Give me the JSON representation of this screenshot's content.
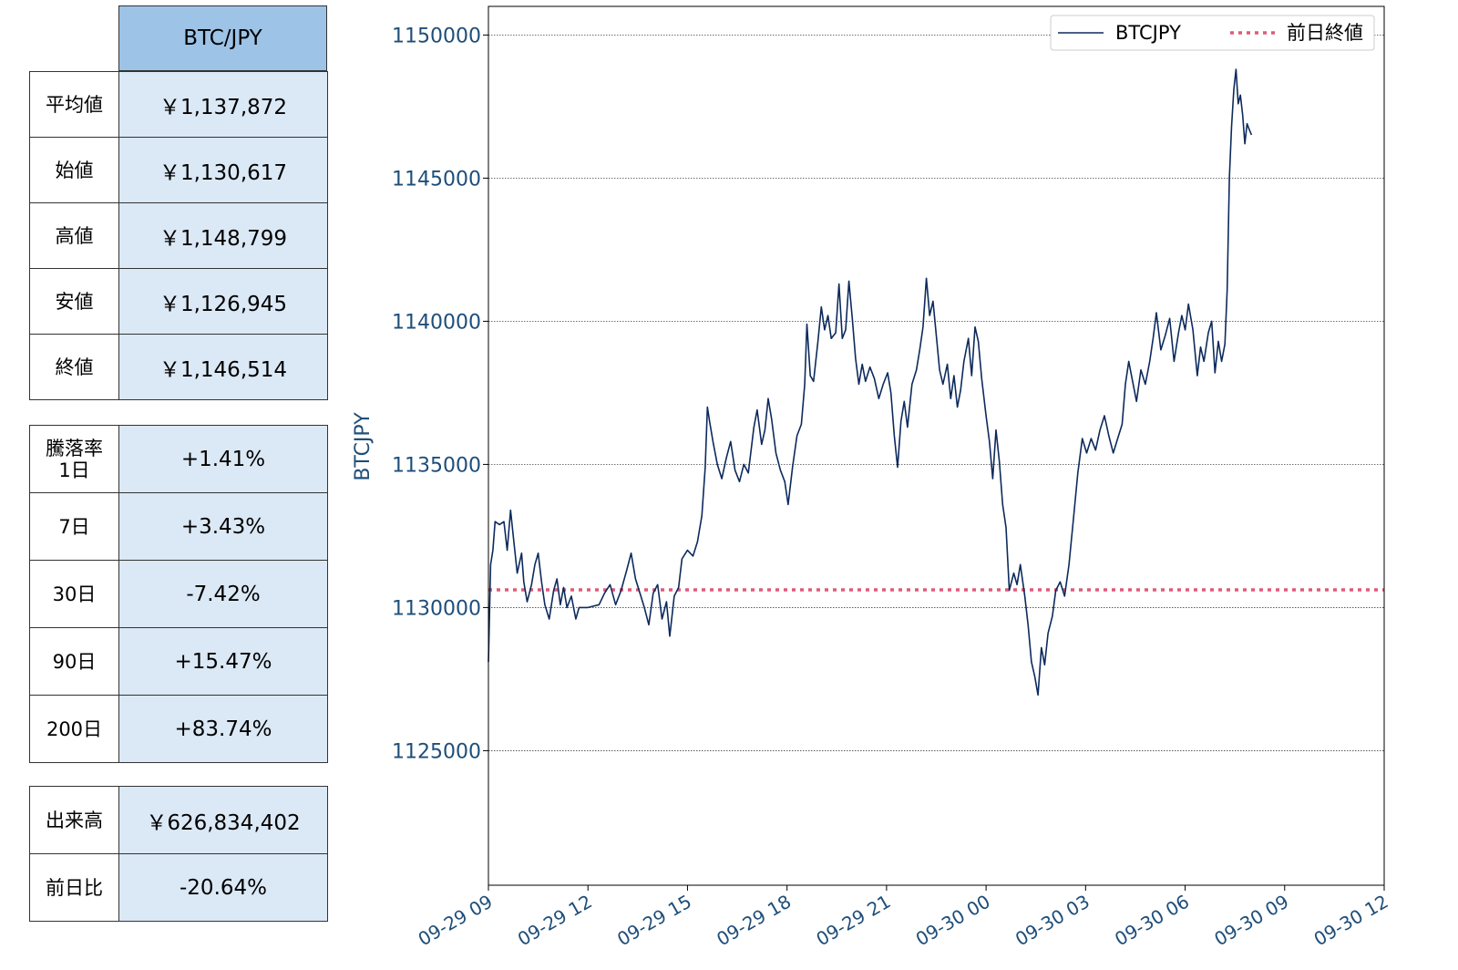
{
  "summary_table": {
    "header": "BTC/JPY",
    "rows": [
      {
        "label": "平均値",
        "value": "￥1,137,872"
      },
      {
        "label": "始値",
        "value": "￥1,130,617"
      },
      {
        "label": "高値",
        "value": "￥1,148,799"
      },
      {
        "label": "安値",
        "value": "￥1,126,945"
      },
      {
        "label": "終値",
        "value": "￥1,146,514"
      }
    ]
  },
  "change_table": {
    "rows": [
      {
        "label": "騰落率\n1日",
        "value": "+1.41%"
      },
      {
        "label": "7日",
        "value": "+3.43%"
      },
      {
        "label": "30日",
        "value": "-7.42%"
      },
      {
        "label": "90日",
        "value": "+15.47%"
      },
      {
        "label": "200日",
        "value": "+83.74%"
      }
    ]
  },
  "volume_table": {
    "rows": [
      {
        "label": "出来高",
        "value": "￥626,834,402"
      },
      {
        "label": "前日比",
        "value": "-20.64%"
      }
    ]
  },
  "colors": {
    "line": "#0d2a5c",
    "reference": "#e05a7a",
    "tick_text": "#1f4e79",
    "header_bg": "#9dc3e6",
    "value_bg": "#dbe8f5"
  },
  "chart_data": {
    "type": "line",
    "xlabel": "",
    "ylabel": "BTCJPY",
    "xlim": [
      "09-29 09:00",
      "09-30 12:00"
    ],
    "ylim": [
      1120300,
      1151000
    ],
    "x_ticks": [
      "09-29 09",
      "09-29 12",
      "09-29 15",
      "09-29 18",
      "09-29 21",
      "09-30 00",
      "09-30 03",
      "09-30 06",
      "09-30 09",
      "09-30 12"
    ],
    "y_ticks": [
      1125000,
      1130000,
      1135000,
      1140000,
      1145000,
      1150000
    ],
    "grid": "horizontal dotted",
    "legend": {
      "position": "top-right",
      "entries": [
        "BTCJPY",
        "前日終値"
      ]
    },
    "series": [
      {
        "name": "BTCJPY",
        "style": "solid",
        "points": [
          [
            "09-29 09:00",
            1128100
          ],
          [
            "09-29 09:04",
            1131500
          ],
          [
            "09-29 09:08",
            1132000
          ],
          [
            "09-29 09:12",
            1133000
          ],
          [
            "09-29 09:20",
            1132900
          ],
          [
            "09-29 09:28",
            1133000
          ],
          [
            "09-29 09:34",
            1132000
          ],
          [
            "09-29 09:40",
            1133400
          ],
          [
            "09-29 09:46",
            1132300
          ],
          [
            "09-29 09:52",
            1131200
          ],
          [
            "09-29 10:00",
            1131900
          ],
          [
            "09-29 10:04",
            1130900
          ],
          [
            "09-29 10:10",
            1130200
          ],
          [
            "09-29 10:18",
            1130800
          ],
          [
            "09-29 10:24",
            1131500
          ],
          [
            "09-29 10:30",
            1131900
          ],
          [
            "09-29 10:36",
            1130900
          ],
          [
            "09-29 10:42",
            1130100
          ],
          [
            "09-29 10:50",
            1129600
          ],
          [
            "09-29 10:58",
            1130600
          ],
          [
            "09-29 11:04",
            1131000
          ],
          [
            "09-29 11:10",
            1130100
          ],
          [
            "09-29 11:16",
            1130700
          ],
          [
            "09-29 11:22",
            1130000
          ],
          [
            "09-29 11:30",
            1130400
          ],
          [
            "09-29 11:38",
            1129600
          ],
          [
            "09-29 11:44",
            1130000
          ],
          [
            "09-29 12:00",
            1130000
          ],
          [
            "09-29 12:20",
            1130100
          ],
          [
            "09-29 12:30",
            1130500
          ],
          [
            "09-29 12:40",
            1130800
          ],
          [
            "09-29 12:50",
            1130100
          ],
          [
            "09-29 13:00",
            1130600
          ],
          [
            "09-29 13:10",
            1131300
          ],
          [
            "09-29 13:18",
            1131900
          ],
          [
            "09-29 13:26",
            1131000
          ],
          [
            "09-29 13:34",
            1130500
          ],
          [
            "09-29 13:42",
            1130000
          ],
          [
            "09-29 13:50",
            1129400
          ],
          [
            "09-29 13:58",
            1130500
          ],
          [
            "09-29 14:06",
            1130800
          ],
          [
            "09-29 14:14",
            1129600
          ],
          [
            "09-29 14:22",
            1130200
          ],
          [
            "09-29 14:28",
            1129000
          ],
          [
            "09-29 14:36",
            1130400
          ],
          [
            "09-29 14:44",
            1130700
          ],
          [
            "09-29 14:50",
            1131700
          ],
          [
            "09-29 15:00",
            1132000
          ],
          [
            "09-29 15:10",
            1131800
          ],
          [
            "09-29 15:18",
            1132300
          ],
          [
            "09-29 15:26",
            1133200
          ],
          [
            "09-29 15:32",
            1134900
          ],
          [
            "09-29 15:36",
            1137000
          ],
          [
            "09-29 15:40",
            1136500
          ],
          [
            "09-29 15:46",
            1135800
          ],
          [
            "09-29 15:54",
            1135000
          ],
          [
            "09-29 16:02",
            1134500
          ],
          [
            "09-29 16:10",
            1135200
          ],
          [
            "09-29 16:18",
            1135800
          ],
          [
            "09-29 16:26",
            1134800
          ],
          [
            "09-29 16:34",
            1134400
          ],
          [
            "09-29 16:42",
            1135000
          ],
          [
            "09-29 16:50",
            1134700
          ],
          [
            "09-29 17:00",
            1136300
          ],
          [
            "09-29 17:06",
            1136900
          ],
          [
            "09-29 17:14",
            1135700
          ],
          [
            "09-29 17:20",
            1136200
          ],
          [
            "09-29 17:26",
            1137300
          ],
          [
            "09-29 17:32",
            1136600
          ],
          [
            "09-29 17:40",
            1135400
          ],
          [
            "09-29 17:48",
            1134800
          ],
          [
            "09-29 17:56",
            1134400
          ],
          [
            "09-29 18:02",
            1133600
          ],
          [
            "09-29 18:10",
            1134900
          ],
          [
            "09-29 18:18",
            1136000
          ],
          [
            "09-29 18:26",
            1136400
          ],
          [
            "09-29 18:32",
            1137800
          ],
          [
            "09-29 18:36",
            1139900
          ],
          [
            "09-29 18:42",
            1138100
          ],
          [
            "09-29 18:48",
            1137900
          ],
          [
            "09-29 18:56",
            1139300
          ],
          [
            "09-29 19:02",
            1140500
          ],
          [
            "09-29 19:08",
            1139700
          ],
          [
            "09-29 19:14",
            1140200
          ],
          [
            "09-29 19:20",
            1139400
          ],
          [
            "09-29 19:28",
            1139600
          ],
          [
            "09-29 19:34",
            1141300
          ],
          [
            "09-29 19:40",
            1139400
          ],
          [
            "09-29 19:46",
            1139700
          ],
          [
            "09-29 19:52",
            1141400
          ],
          [
            "09-29 19:58",
            1140100
          ],
          [
            "09-29 20:04",
            1138700
          ],
          [
            "09-29 20:10",
            1137800
          ],
          [
            "09-29 20:16",
            1138500
          ],
          [
            "09-29 20:22",
            1137900
          ],
          [
            "09-29 20:30",
            1138400
          ],
          [
            "09-29 20:38",
            1138000
          ],
          [
            "09-29 20:46",
            1137300
          ],
          [
            "09-29 20:54",
            1137800
          ],
          [
            "09-29 21:02",
            1138200
          ],
          [
            "09-29 21:08",
            1137500
          ],
          [
            "09-29 21:14",
            1136000
          ],
          [
            "09-29 21:20",
            1134900
          ],
          [
            "09-29 21:26",
            1136500
          ],
          [
            "09-29 21:32",
            1137200
          ],
          [
            "09-29 21:38",
            1136300
          ],
          [
            "09-29 21:46",
            1137800
          ],
          [
            "09-29 21:54",
            1138300
          ],
          [
            "09-29 22:00",
            1139000
          ],
          [
            "09-29 22:06",
            1139800
          ],
          [
            "09-29 22:12",
            1141500
          ],
          [
            "09-29 22:18",
            1140200
          ],
          [
            "09-29 22:24",
            1140700
          ],
          [
            "09-29 22:30",
            1139500
          ],
          [
            "09-29 22:36",
            1138300
          ],
          [
            "09-29 22:42",
            1137800
          ],
          [
            "09-29 22:50",
            1138500
          ],
          [
            "09-29 22:56",
            1137300
          ],
          [
            "09-29 23:02",
            1138100
          ],
          [
            "09-29 23:08",
            1137000
          ],
          [
            "09-29 23:14",
            1137600
          ],
          [
            "09-29 23:20",
            1138600
          ],
          [
            "09-29 23:28",
            1139400
          ],
          [
            "09-29 23:34",
            1138100
          ],
          [
            "09-29 23:40",
            1139800
          ],
          [
            "09-29 23:46",
            1139300
          ],
          [
            "09-29 23:52",
            1138000
          ],
          [
            "09-30 00:00",
            1136700
          ],
          [
            "09-30 00:06",
            1135800
          ],
          [
            "09-30 00:12",
            1134500
          ],
          [
            "09-30 00:18",
            1136200
          ],
          [
            "09-30 00:24",
            1135100
          ],
          [
            "09-30 00:30",
            1133600
          ],
          [
            "09-30 00:36",
            1132800
          ],
          [
            "09-30 00:42",
            1130600
          ],
          [
            "09-30 00:50",
            1131200
          ],
          [
            "09-30 00:56",
            1130800
          ],
          [
            "09-30 01:02",
            1131500
          ],
          [
            "09-30 01:10",
            1130400
          ],
          [
            "09-30 01:16",
            1129400
          ],
          [
            "09-30 01:22",
            1128100
          ],
          [
            "09-30 01:28",
            1127600
          ],
          [
            "09-30 01:34",
            1126945
          ],
          [
            "09-30 01:40",
            1128600
          ],
          [
            "09-30 01:46",
            1128000
          ],
          [
            "09-30 01:52",
            1129100
          ],
          [
            "09-30 02:00",
            1129700
          ],
          [
            "09-30 02:06",
            1130600
          ],
          [
            "09-30 02:14",
            1130900
          ],
          [
            "09-30 02:22",
            1130400
          ],
          [
            "09-30 02:30",
            1131500
          ],
          [
            "09-30 02:38",
            1133100
          ],
          [
            "09-30 02:46",
            1134700
          ],
          [
            "09-30 02:54",
            1135900
          ],
          [
            "09-30 03:02",
            1135400
          ],
          [
            "09-30 03:10",
            1135900
          ],
          [
            "09-30 03:18",
            1135500
          ],
          [
            "09-30 03:26",
            1136200
          ],
          [
            "09-30 03:34",
            1136700
          ],
          [
            "09-30 03:42",
            1136000
          ],
          [
            "09-30 03:50",
            1135400
          ],
          [
            "09-30 03:58",
            1135900
          ],
          [
            "09-30 04:06",
            1136400
          ],
          [
            "09-30 04:12",
            1137800
          ],
          [
            "09-30 04:18",
            1138600
          ],
          [
            "09-30 04:24",
            1138000
          ],
          [
            "09-30 04:32",
            1137200
          ],
          [
            "09-30 04:40",
            1138300
          ],
          [
            "09-30 04:48",
            1137800
          ],
          [
            "09-30 04:56",
            1138600
          ],
          [
            "09-30 05:02",
            1139400
          ],
          [
            "09-30 05:08",
            1140300
          ],
          [
            "09-30 05:16",
            1139000
          ],
          [
            "09-30 05:24",
            1139500
          ],
          [
            "09-30 05:32",
            1140100
          ],
          [
            "09-30 05:40",
            1138600
          ],
          [
            "09-30 05:48",
            1139600
          ],
          [
            "09-30 05:54",
            1140200
          ],
          [
            "09-30 06:00",
            1139700
          ],
          [
            "09-30 06:06",
            1140600
          ],
          [
            "09-30 06:14",
            1139700
          ],
          [
            "09-30 06:22",
            1138100
          ],
          [
            "09-30 06:28",
            1139100
          ],
          [
            "09-30 06:34",
            1138600
          ],
          [
            "09-30 06:42",
            1139600
          ],
          [
            "09-30 06:48",
            1140000
          ],
          [
            "09-30 06:54",
            1138200
          ],
          [
            "09-30 07:00",
            1139300
          ],
          [
            "09-30 07:06",
            1138600
          ],
          [
            "09-30 07:12",
            1139200
          ],
          [
            "09-30 07:16",
            1141100
          ],
          [
            "09-30 07:20",
            1145000
          ],
          [
            "09-30 07:24",
            1146800
          ],
          [
            "09-30 07:28",
            1148100
          ],
          [
            "09-30 07:32",
            1148799
          ],
          [
            "09-30 07:36",
            1147600
          ],
          [
            "09-30 07:40",
            1147900
          ],
          [
            "09-30 07:44",
            1147200
          ],
          [
            "09-30 07:48",
            1146200
          ],
          [
            "09-30 07:52",
            1146900
          ],
          [
            "09-30 07:56",
            1146700
          ],
          [
            "09-30 08:00",
            1146514
          ]
        ]
      },
      {
        "name": "前日終値",
        "style": "dotted",
        "value": 1130617
      }
    ]
  }
}
